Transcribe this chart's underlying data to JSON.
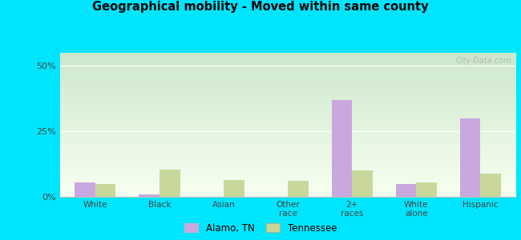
{
  "title": "Geographical mobility - Moved within same county",
  "categories": [
    "White",
    "Black",
    "Asian",
    "Other\nrace",
    "2+\nraces",
    "White\nalone",
    "Hispanic"
  ],
  "alamo_values": [
    5.5,
    1.0,
    0.0,
    0.0,
    37.0,
    5.0,
    30.0
  ],
  "tennessee_values": [
    5.0,
    10.5,
    6.5,
    6.0,
    10.0,
    5.5,
    9.0
  ],
  "alamo_color": "#c9a8e0",
  "tennessee_color": "#c8d89a",
  "fig_bg": "#00e5ff",
  "plot_bg_top": "#cce8cc",
  "plot_bg_bottom": "#f8fff0",
  "yticks": [
    0,
    25,
    50
  ],
  "ylim": [
    0,
    55
  ],
  "bar_width": 0.32,
  "legend_labels": [
    "Alamo, TN",
    "Tennessee"
  ],
  "watermark": "City-Data.com"
}
